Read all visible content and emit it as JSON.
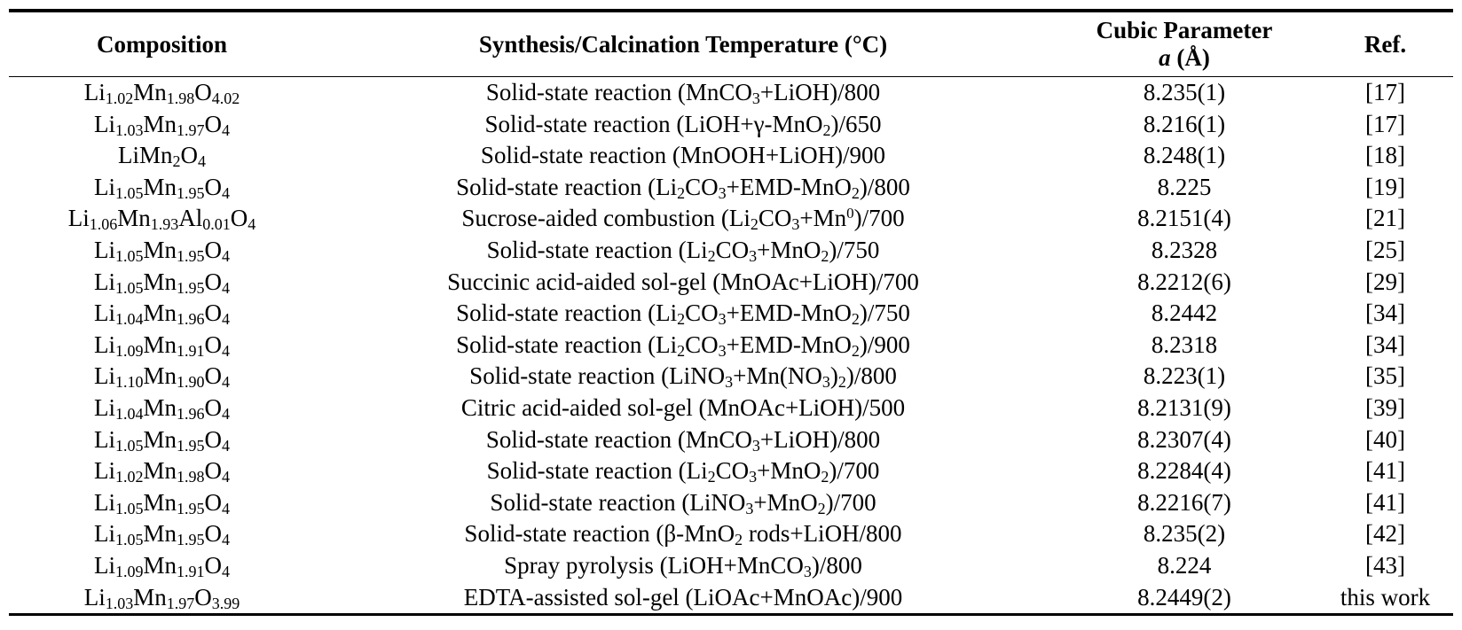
{
  "table": {
    "headers": {
      "composition": "Composition",
      "synthesis": "Synthesis/Calcination Temperature (°C)",
      "cubic_line1": "Cubic Parameter",
      "cubic_symbol": "a",
      "cubic_unit": " (Å)",
      "ref": "Ref."
    },
    "rows": [
      {
        "composition": "Li1.02Mn1.98O4.02",
        "synthesis": "Solid-state reaction (MnCO3+LiOH)/800",
        "a": "8.235(1)",
        "ref": "[17]"
      },
      {
        "composition": "Li1.03Mn1.97O4",
        "synthesis": "Solid-state reaction (LiOH+γ-MnO2)/650",
        "a": "8.216(1)",
        "ref": "[17]"
      },
      {
        "composition": "LiMn2O4",
        "synthesis": "Solid-state reaction (MnOOH+LiOH)/900",
        "a": "8.248(1)",
        "ref": "[18]"
      },
      {
        "composition": "Li1.05Mn1.95O4",
        "synthesis": "Solid-state reaction (Li2CO3+EMD-MnO2)/800",
        "a": "8.225",
        "ref": "[19]"
      },
      {
        "composition": "Li1.06Mn1.93Al0.01O4",
        "synthesis": "Sucrose-aided combustion (Li2CO3+Mn0)/700",
        "a": "8.2151(4)",
        "ref": "[21]"
      },
      {
        "composition": "Li1.05Mn1.95O4",
        "synthesis": "Solid-state reaction (Li2CO3+MnO2)/750",
        "a": "8.2328",
        "ref": "[25]"
      },
      {
        "composition": "Li1.05Mn1.95O4",
        "synthesis": "Succinic acid-aided sol-gel (MnOAc+LiOH)/700",
        "a": "8.2212(6)",
        "ref": "[29]"
      },
      {
        "composition": "Li1.04Mn1.96O4",
        "synthesis": "Solid-state reaction (Li2CO3+EMD-MnO2)/750",
        "a": "8.2442",
        "ref": "[34]"
      },
      {
        "composition": "Li1.09Mn1.91O4",
        "synthesis": "Solid-state reaction (Li2CO3+EMD-MnO2)/900",
        "a": "8.2318",
        "ref": "[34]"
      },
      {
        "composition": "Li1.10Mn1.90O4",
        "synthesis": "Solid-state reaction (LiNO3+Mn(NO3)2)/800",
        "a": "8.223(1)",
        "ref": "[35]"
      },
      {
        "composition": "Li1.04Mn1.96O4",
        "synthesis": "Citric acid-aided sol-gel (MnOAc+LiOH)/500",
        "a": "8.2131(9)",
        "ref": "[39]"
      },
      {
        "composition": "Li1.05Mn1.95O4",
        "synthesis": "Solid-state reaction (MnCO3+LiOH)/800",
        "a": "8.2307(4)",
        "ref": "[40]"
      },
      {
        "composition": "Li1.02Mn1.98O4",
        "synthesis": "Solid-state reaction (Li2CO3+MnO2)/700",
        "a": "8.2284(4)",
        "ref": "[41]"
      },
      {
        "composition": "Li1.05Mn1.95O4",
        "synthesis": "Solid-state reaction (LiNO3+MnO2)/700",
        "a": "8.2216(7)",
        "ref": "[41]"
      },
      {
        "composition": "Li1.05Mn1.95O4",
        "synthesis": "Solid-state reaction (β-MnO2 rods+LiOH/800",
        "a": "8.235(2)",
        "ref": "[42]"
      },
      {
        "composition": "Li1.09Mn1.91O4",
        "synthesis": "Spray pyrolysis (LiOH+MnCO3)/800",
        "a": "8.224",
        "ref": "[43]"
      },
      {
        "composition": "Li1.03Mn1.97O3.99",
        "synthesis": "EDTA-assisted sol-gel (LiOAc+MnOAc)/900",
        "a": "8.2449(2)",
        "ref": "this work"
      }
    ]
  }
}
